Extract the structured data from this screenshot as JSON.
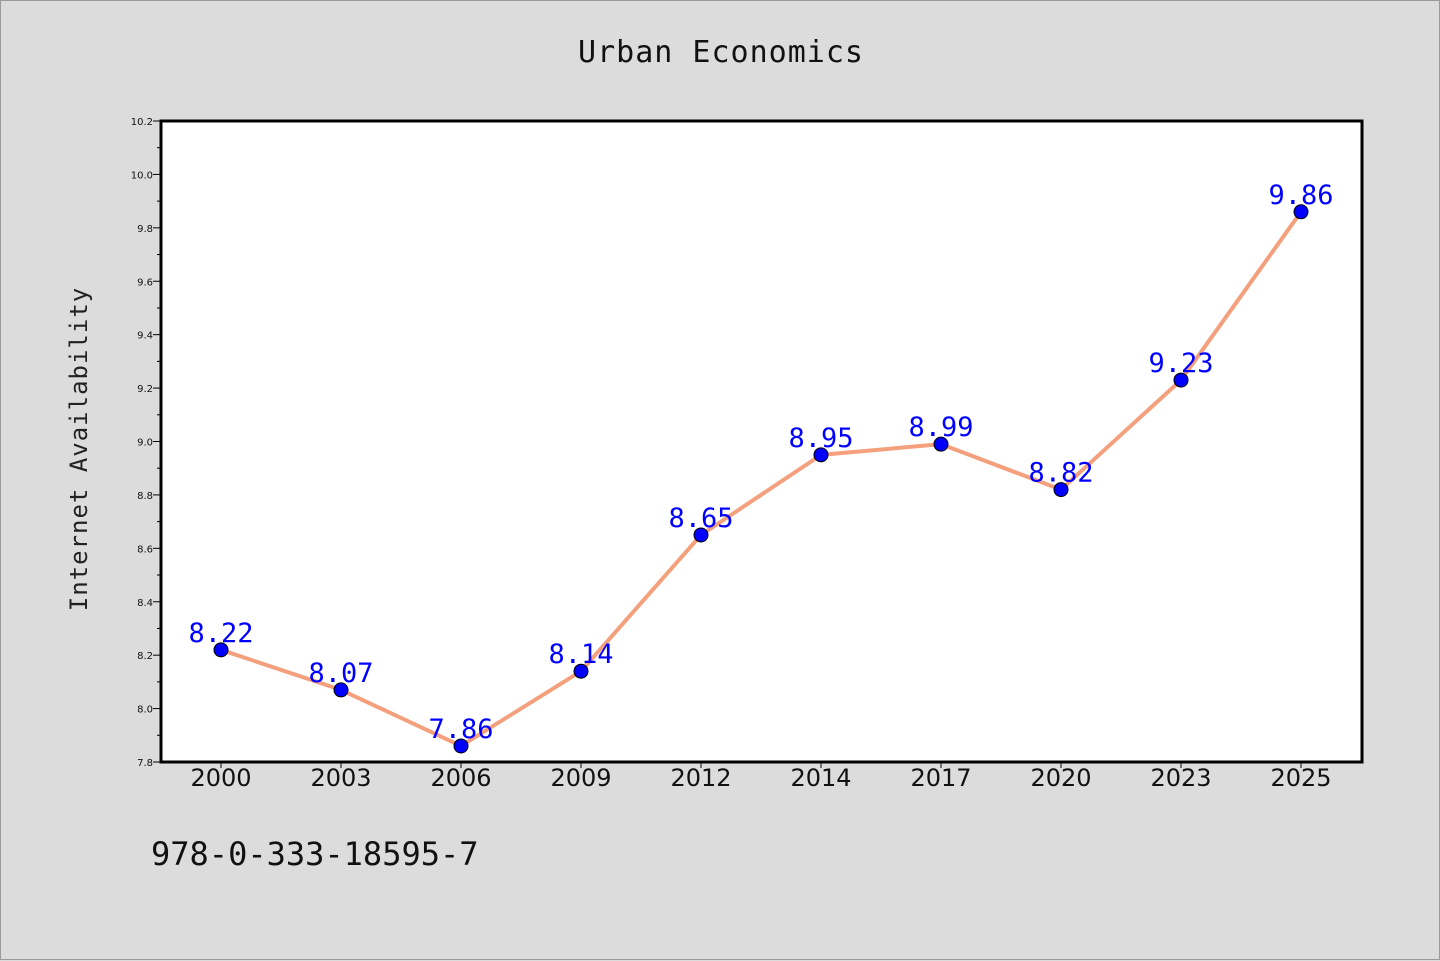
{
  "chart_data": {
    "type": "line",
    "title": "Urban Economics",
    "xlabel": "",
    "ylabel": "Internet Availability",
    "categories": [
      "2000",
      "2003",
      "2006",
      "2009",
      "2012",
      "2014",
      "2017",
      "2020",
      "2023",
      "2025"
    ],
    "series": [
      {
        "values": [
          8.22,
          8.07,
          7.86,
          8.14,
          8.65,
          8.95,
          8.99,
          8.82,
          9.23,
          9.86
        ]
      }
    ],
    "ylim": [
      7.8,
      10.2
    ],
    "yticks": [
      "7.8",
      "8.0",
      "8.2",
      "8.4",
      "8.6",
      "8.8",
      "9.0",
      "9.2",
      "9.4",
      "9.6",
      "9.8",
      "10.0",
      "10.2"
    ],
    "grid": false,
    "legend": "none",
    "line_color": "#f4a07c",
    "marker_color": "#0000ff",
    "label_color": "#0000ff"
  },
  "footer": {
    "isbn": "978-0-333-18595-7"
  }
}
